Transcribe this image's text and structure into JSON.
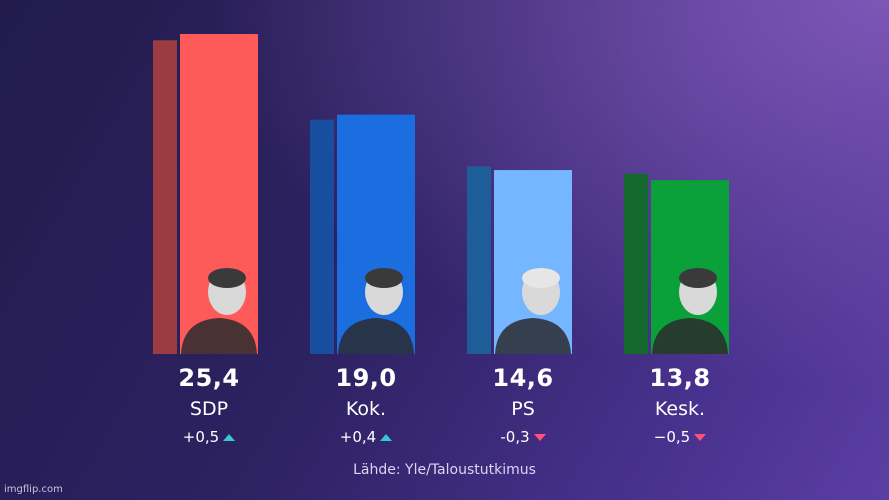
{
  "chart_data": {
    "type": "bar",
    "categories": [
      "SDP",
      "Kok.",
      "PS",
      "Kesk."
    ],
    "values": [
      25.4,
      19.0,
      14.6,
      13.8
    ],
    "value_labels": [
      "25,4",
      "19,0",
      "14,6",
      "13,8"
    ],
    "changes": [
      "+0,5",
      "+0,4",
      "-0,3",
      "−0,5"
    ],
    "change_direction": [
      "up",
      "up",
      "down",
      "down"
    ],
    "previous_values": [
      24.9,
      18.6,
      14.9,
      14.3
    ],
    "colors": [
      "#ff5a5a",
      "#1b6ee0",
      "#74b6ff",
      "#0aa03a"
    ],
    "previous_colors": [
      "#9b3b42",
      "#174f9e",
      "#1e5e98",
      "#13692d"
    ],
    "source": "Lähde: Yle/Taloustutkimus",
    "ylim": [
      0,
      27
    ]
  },
  "watermark": "imgflip.com"
}
